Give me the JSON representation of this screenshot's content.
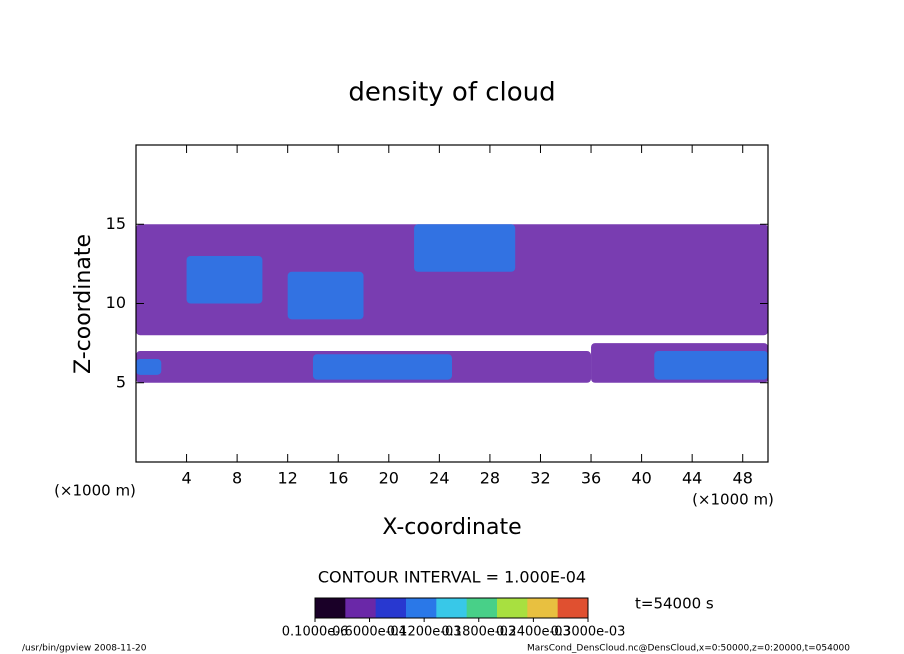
{
  "chart_data": {
    "type": "contour",
    "title": "density of cloud",
    "xlabel": "X-coordinate",
    "ylabel": "Z-coordinate",
    "xunit": "(×1000 m)",
    "xlim": [
      0,
      50
    ],
    "xticks": [
      4,
      8,
      12,
      16,
      20,
      24,
      28,
      32,
      36,
      40,
      44,
      48
    ],
    "ylim": [
      0,
      20
    ],
    "yticks": [
      5,
      10,
      15
    ],
    "contour_interval": "CONTOUR INTERVAL = 1.000E-04",
    "time_label": "t=54000 s",
    "colormap": [
      "#1a0028",
      "#6a28a8",
      "#2838d0",
      "#2a78e8",
      "#38c8e8",
      "#48d088",
      "#a8e040",
      "#e8c040",
      "#e05030"
    ],
    "colorbar_lim": [
      1e-07,
      0.0003
    ],
    "colorbar_ticks": [
      {
        "value": 1e-07,
        "label": "0.1000e-6"
      },
      {
        "value": 6e-05,
        "label": "0.6000e-04"
      },
      {
        "value": 0.00012,
        "label": "0.1200e-03"
      },
      {
        "value": 0.00018,
        "label": "0.1800e-03"
      },
      {
        "value": 0.00024,
        "label": "0.2400e-03"
      },
      {
        "value": 0.0003,
        "label": "0.3000e-03"
      }
    ],
    "regions": [
      {
        "x": [
          0,
          50
        ],
        "z": [
          8,
          15
        ],
        "value": 5e-05
      },
      {
        "x": [
          0,
          36
        ],
        "z": [
          5,
          7
        ],
        "value": 5e-05
      },
      {
        "x": [
          36,
          50
        ],
        "z": [
          5,
          7.5
        ],
        "value": 5e-05
      },
      {
        "x": [
          4,
          10
        ],
        "z": [
          10,
          13
        ],
        "value": 0.0001
      },
      {
        "x": [
          12,
          18
        ],
        "z": [
          9,
          12
        ],
        "value": 0.0001
      },
      {
        "x": [
          22,
          30
        ],
        "z": [
          12,
          15
        ],
        "value": 0.0001
      },
      {
        "x": [
          0,
          2
        ],
        "z": [
          5.5,
          6.5
        ],
        "value": 0.00012
      },
      {
        "x": [
          14,
          25
        ],
        "z": [
          5.2,
          6.8
        ],
        "value": 0.00012
      },
      {
        "x": [
          41,
          50
        ],
        "z": [
          5.2,
          7
        ],
        "value": 0.00013
      }
    ],
    "footer_left": "/usr/bin/gpview  2008-11-20",
    "footer_right": "MarsCond_DensCloud.nc@DensCloud,x=0:50000,z=0:20000,t=054000"
  }
}
